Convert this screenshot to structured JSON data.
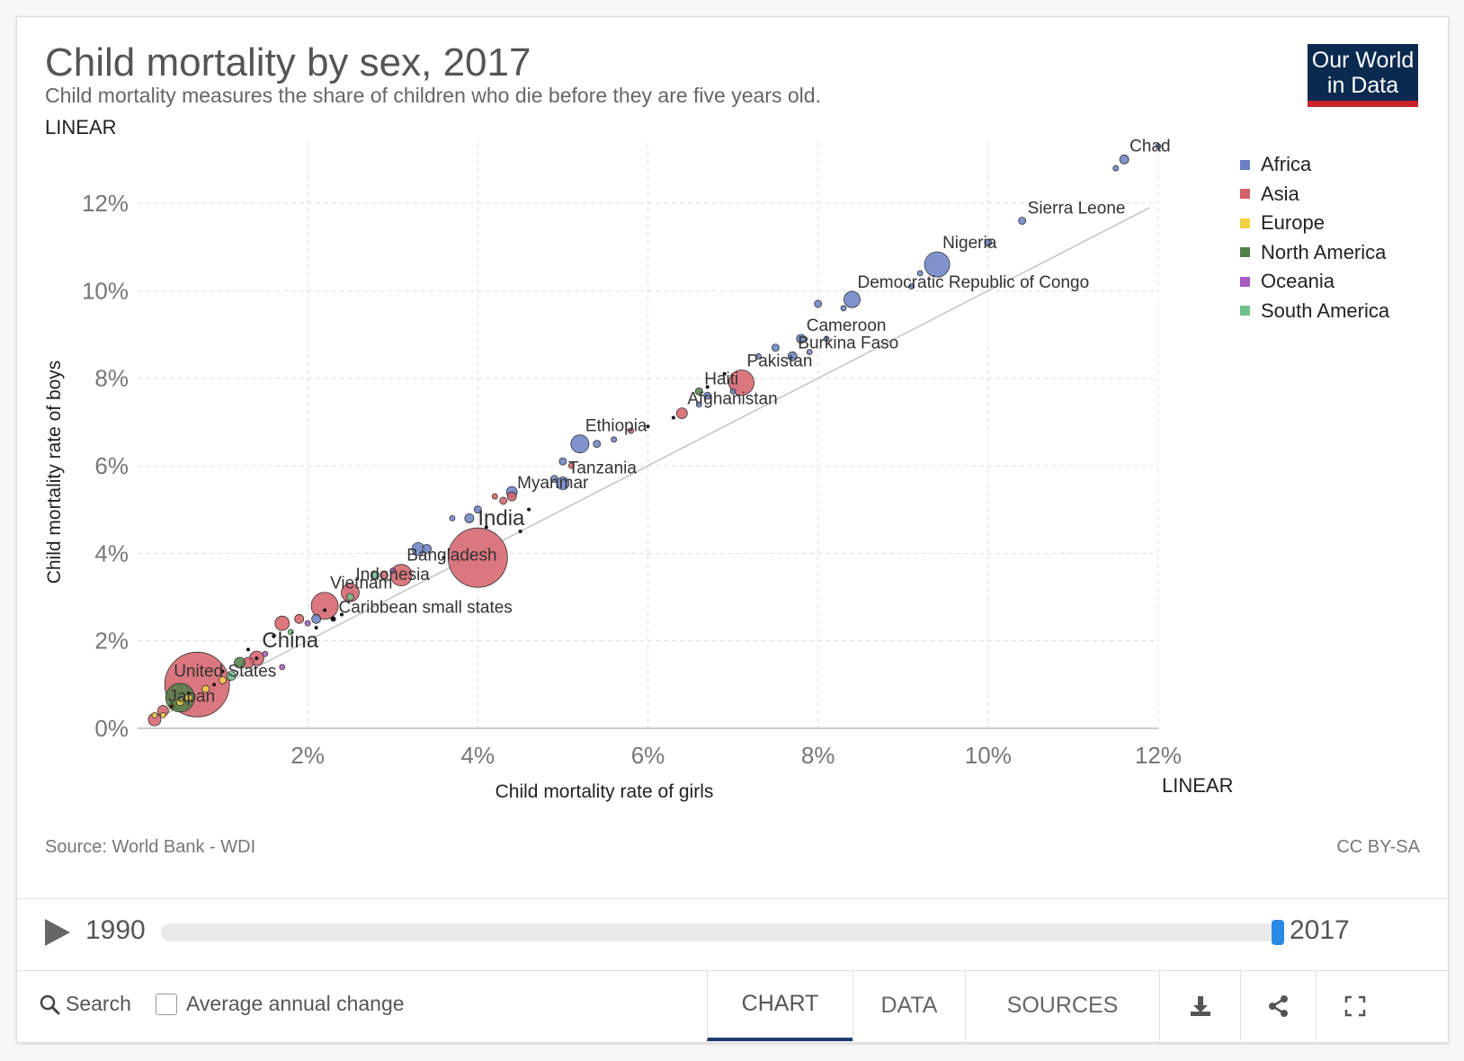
{
  "header": {
    "title": "Child mortality by sex, 2017",
    "subtitle": "Child mortality measures the share of children who die before they are five years old.",
    "logo_line1": "Our World",
    "logo_line2": "in Data"
  },
  "controls": {
    "y_scale_toggle": "LINEAR",
    "x_scale_toggle": "LINEAR"
  },
  "legend": [
    {
      "name": "Africa",
      "color": "#6b80c4"
    },
    {
      "name": "Asia",
      "color": "#d45f68"
    },
    {
      "name": "Europe",
      "color": "#f2d144"
    },
    {
      "name": "North America",
      "color": "#4f7f48"
    },
    {
      "name": "Oceania",
      "color": "#a95bc1"
    },
    {
      "name": "South America",
      "color": "#6fc18a"
    }
  ],
  "footer_text": {
    "source": "Source: World Bank - WDI",
    "license": "CC BY-SA"
  },
  "timeline": {
    "start_year": "1990",
    "end_year": "2017",
    "position": 1.0
  },
  "toolbar": {
    "search_label": "Search",
    "checkbox_label": "Average annual change",
    "tabs": [
      "CHART",
      "DATA",
      "SOURCES"
    ],
    "active_tab": "CHART",
    "icons": [
      "download-icon",
      "share-icon",
      "fullscreen-icon"
    ]
  },
  "chart_data": {
    "type": "scatter",
    "title": "Child mortality by sex, 2017",
    "xlabel": "Child mortality rate of girls",
    "ylabel": "Child mortality rate of boys",
    "xlim": [
      0,
      12
    ],
    "ylim": [
      0,
      13
    ],
    "x_ticks": [
      "2%",
      "4%",
      "6%",
      "8%",
      "10%",
      "12%"
    ],
    "y_ticks": [
      "0%",
      "2%",
      "4%",
      "6%",
      "8%",
      "10%",
      "12%"
    ],
    "reference_line": "y = x",
    "grid": true,
    "legend_position": "right",
    "points": [
      {
        "label": "Chad",
        "x": 11.6,
        "y": 13.0,
        "region": "Africa",
        "size": 5
      },
      {
        "label": "Sierra Leone",
        "x": 10.4,
        "y": 11.6,
        "region": "Africa",
        "size": 4
      },
      {
        "label": "Nigeria",
        "x": 9.4,
        "y": 10.6,
        "region": "Africa",
        "size": 14
      },
      {
        "label": "Democratic Republic of Congo",
        "x": 8.4,
        "y": 9.8,
        "region": "Africa",
        "size": 9
      },
      {
        "label": "Cameroon",
        "x": 7.8,
        "y": 8.9,
        "region": "Africa",
        "size": 5
      },
      {
        "label": "Burkina Faso",
        "x": 7.7,
        "y": 8.5,
        "region": "Africa",
        "size": 5
      },
      {
        "label": "Pakistan",
        "x": 7.1,
        "y": 7.9,
        "region": "Asia",
        "size": 14
      },
      {
        "label": "Haiti",
        "x": 6.6,
        "y": 7.7,
        "region": "North America",
        "size": 4
      },
      {
        "label": "Afghanistan",
        "x": 6.4,
        "y": 7.2,
        "region": "Asia",
        "size": 6
      },
      {
        "label": "Ethiopia",
        "x": 5.2,
        "y": 6.5,
        "region": "Africa",
        "size": 10
      },
      {
        "label": "Tanzania",
        "x": 5.0,
        "y": 5.6,
        "region": "Africa",
        "size": 7
      },
      {
        "label": "Myanmar",
        "x": 4.4,
        "y": 5.3,
        "region": "Asia",
        "size": 5
      },
      {
        "label": "India",
        "x": 4.0,
        "y": 3.9,
        "region": "Asia",
        "size": 33
      },
      {
        "label": "Bangladesh",
        "x": 3.1,
        "y": 3.5,
        "region": "Asia",
        "size": 12
      },
      {
        "label": "Indonesia",
        "x": 2.5,
        "y": 3.1,
        "region": "Asia",
        "size": 10
      },
      {
        "label": "Vietnam",
        "x": 2.2,
        "y": 2.8,
        "region": "Asia",
        "size": 15
      },
      {
        "label": "Caribbean small states",
        "x": 2.3,
        "y": 2.5,
        "region": "Other",
        "size": 3
      },
      {
        "label": "China",
        "x": 1.4,
        "y": 1.6,
        "region": "Asia",
        "size": 8
      },
      {
        "label": "United States",
        "x": 0.7,
        "y": 1.0,
        "region": "Asia",
        "size": 36
      },
      {
        "label": "Japan",
        "x": 0.3,
        "y": 0.4,
        "region": "Asia",
        "size": 6
      },
      {
        "label": "",
        "x": 0.5,
        "y": 0.7,
        "region": "North America",
        "size": 16
      },
      {
        "label": "",
        "x": 12.0,
        "y": 13.3,
        "region": "Africa",
        "size": 3
      },
      {
        "label": "",
        "x": 11.5,
        "y": 12.8,
        "region": "Africa",
        "size": 3
      },
      {
        "label": "",
        "x": 10.0,
        "y": 11.1,
        "region": "Africa",
        "size": 4
      },
      {
        "label": "",
        "x": 9.1,
        "y": 10.1,
        "region": "Africa",
        "size": 3
      },
      {
        "label": "",
        "x": 9.2,
        "y": 10.4,
        "region": "Africa",
        "size": 3
      },
      {
        "label": "",
        "x": 8.0,
        "y": 9.7,
        "region": "Africa",
        "size": 4
      },
      {
        "label": "",
        "x": 8.3,
        "y": 9.6,
        "region": "Africa",
        "size": 3
      },
      {
        "label": "",
        "x": 8.1,
        "y": 8.9,
        "region": "Africa",
        "size": 3
      },
      {
        "label": "",
        "x": 7.5,
        "y": 8.7,
        "region": "Africa",
        "size": 4
      },
      {
        "label": "",
        "x": 7.3,
        "y": 8.5,
        "region": "Africa",
        "size": 3
      },
      {
        "label": "",
        "x": 7.9,
        "y": 8.6,
        "region": "Africa",
        "size": 3
      },
      {
        "label": "",
        "x": 6.7,
        "y": 7.6,
        "region": "Africa",
        "size": 4
      },
      {
        "label": "",
        "x": 6.6,
        "y": 7.4,
        "region": "Africa",
        "size": 3
      },
      {
        "label": "",
        "x": 6.9,
        "y": 8.1,
        "region": "Other",
        "size": 2
      },
      {
        "label": "",
        "x": 6.7,
        "y": 7.8,
        "region": "Other",
        "size": 2
      },
      {
        "label": "",
        "x": 7.0,
        "y": 7.7,
        "region": "Africa",
        "size": 3
      },
      {
        "label": "",
        "x": 5.8,
        "y": 6.8,
        "region": "Asia",
        "size": 3
      },
      {
        "label": "",
        "x": 5.6,
        "y": 6.6,
        "region": "Africa",
        "size": 3
      },
      {
        "label": "",
        "x": 5.4,
        "y": 6.5,
        "region": "Africa",
        "size": 4
      },
      {
        "label": "",
        "x": 6.0,
        "y": 6.9,
        "region": "Other",
        "size": 2
      },
      {
        "label": "",
        "x": 6.3,
        "y": 7.1,
        "region": "Other",
        "size": 2
      },
      {
        "label": "",
        "x": 5.0,
        "y": 6.1,
        "region": "Africa",
        "size": 4
      },
      {
        "label": "",
        "x": 5.1,
        "y": 6.0,
        "region": "Asia",
        "size": 3
      },
      {
        "label": "",
        "x": 4.9,
        "y": 5.7,
        "region": "Africa",
        "size": 4
      },
      {
        "label": "",
        "x": 4.4,
        "y": 5.4,
        "region": "Africa",
        "size": 6
      },
      {
        "label": "",
        "x": 4.3,
        "y": 5.2,
        "region": "Asia",
        "size": 4
      },
      {
        "label": "",
        "x": 4.2,
        "y": 5.3,
        "region": "Asia",
        "size": 3
      },
      {
        "label": "",
        "x": 3.7,
        "y": 4.8,
        "region": "Africa",
        "size": 3
      },
      {
        "label": "",
        "x": 3.9,
        "y": 4.8,
        "region": "Africa",
        "size": 5
      },
      {
        "label": "",
        "x": 4.0,
        "y": 5.0,
        "region": "Africa",
        "size": 4
      },
      {
        "label": "",
        "x": 4.6,
        "y": 5.0,
        "region": "Other",
        "size": 2
      },
      {
        "label": "",
        "x": 4.5,
        "y": 4.5,
        "region": "Other",
        "size": 2
      },
      {
        "label": "",
        "x": 4.1,
        "y": 4.6,
        "region": "Other",
        "size": 2
      },
      {
        "label": "",
        "x": 3.3,
        "y": 4.1,
        "region": "Africa",
        "size": 7
      },
      {
        "label": "",
        "x": 3.4,
        "y": 4.1,
        "region": "Africa",
        "size": 5
      },
      {
        "label": "",
        "x": 3.6,
        "y": 3.9,
        "region": "Other",
        "size": 2
      },
      {
        "label": "",
        "x": 2.8,
        "y": 3.5,
        "region": "South America",
        "size": 4
      },
      {
        "label": "",
        "x": 3.0,
        "y": 3.6,
        "region": "Oceania",
        "size": 3
      },
      {
        "label": "",
        "x": 2.9,
        "y": 3.5,
        "region": "Asia",
        "size": 4
      },
      {
        "label": "",
        "x": 2.5,
        "y": 3.0,
        "region": "South America",
        "size": 4
      },
      {
        "label": "",
        "x": 2.1,
        "y": 2.5,
        "region": "Africa",
        "size": 5
      },
      {
        "label": "",
        "x": 1.9,
        "y": 2.5,
        "region": "Asia",
        "size": 5
      },
      {
        "label": "",
        "x": 1.7,
        "y": 2.4,
        "region": "Asia",
        "size": 8
      },
      {
        "label": "",
        "x": 2.0,
        "y": 2.4,
        "region": "Oceania",
        "size": 3
      },
      {
        "label": "",
        "x": 1.8,
        "y": 2.2,
        "region": "South America",
        "size": 3
      },
      {
        "label": "",
        "x": 2.1,
        "y": 2.3,
        "region": "Other",
        "size": 2
      },
      {
        "label": "",
        "x": 2.2,
        "y": 2.7,
        "region": "Other",
        "size": 2
      },
      {
        "label": "",
        "x": 2.4,
        "y": 2.6,
        "region": "Other",
        "size": 2
      },
      {
        "label": "",
        "x": 1.6,
        "y": 2.1,
        "region": "Other",
        "size": 2
      },
      {
        "label": "",
        "x": 1.5,
        "y": 1.7,
        "region": "Oceania",
        "size": 3
      },
      {
        "label": "",
        "x": 1.3,
        "y": 1.5,
        "region": "Asia",
        "size": 6
      },
      {
        "label": "",
        "x": 1.2,
        "y": 1.5,
        "region": "North America",
        "size": 6
      },
      {
        "label": "",
        "x": 1.1,
        "y": 1.2,
        "region": "South America",
        "size": 5
      },
      {
        "label": "",
        "x": 1.0,
        "y": 1.1,
        "region": "Europe",
        "size": 4
      },
      {
        "label": "",
        "x": 1.7,
        "y": 1.4,
        "region": "Oceania",
        "size": 3
      },
      {
        "label": "",
        "x": 1.3,
        "y": 1.8,
        "region": "Other",
        "size": 2
      },
      {
        "label": "",
        "x": 1.4,
        "y": 1.6,
        "region": "Other",
        "size": 2
      },
      {
        "label": "",
        "x": 1.0,
        "y": 1.3,
        "region": "Other",
        "size": 2
      },
      {
        "label": "",
        "x": 0.9,
        "y": 1.0,
        "region": "Other",
        "size": 2
      },
      {
        "label": "",
        "x": 0.8,
        "y": 0.9,
        "region": "Europe",
        "size": 4
      },
      {
        "label": "",
        "x": 0.6,
        "y": 0.7,
        "region": "Europe",
        "size": 4
      },
      {
        "label": "",
        "x": 0.5,
        "y": 0.6,
        "region": "Europe",
        "size": 4
      },
      {
        "label": "",
        "x": 0.4,
        "y": 0.5,
        "region": "Europe",
        "size": 3
      },
      {
        "label": "",
        "x": 0.3,
        "y": 0.3,
        "region": "Europe",
        "size": 3
      },
      {
        "label": "",
        "x": 0.2,
        "y": 0.2,
        "region": "Asia",
        "size": 7
      },
      {
        "label": "",
        "x": 0.2,
        "y": 0.3,
        "region": "Europe",
        "size": 3
      },
      {
        "label": "",
        "x": 0.6,
        "y": 0.8,
        "region": "Other",
        "size": 2
      },
      {
        "label": "",
        "x": 0.4,
        "y": 0.5,
        "region": "Other",
        "size": 2
      }
    ]
  }
}
